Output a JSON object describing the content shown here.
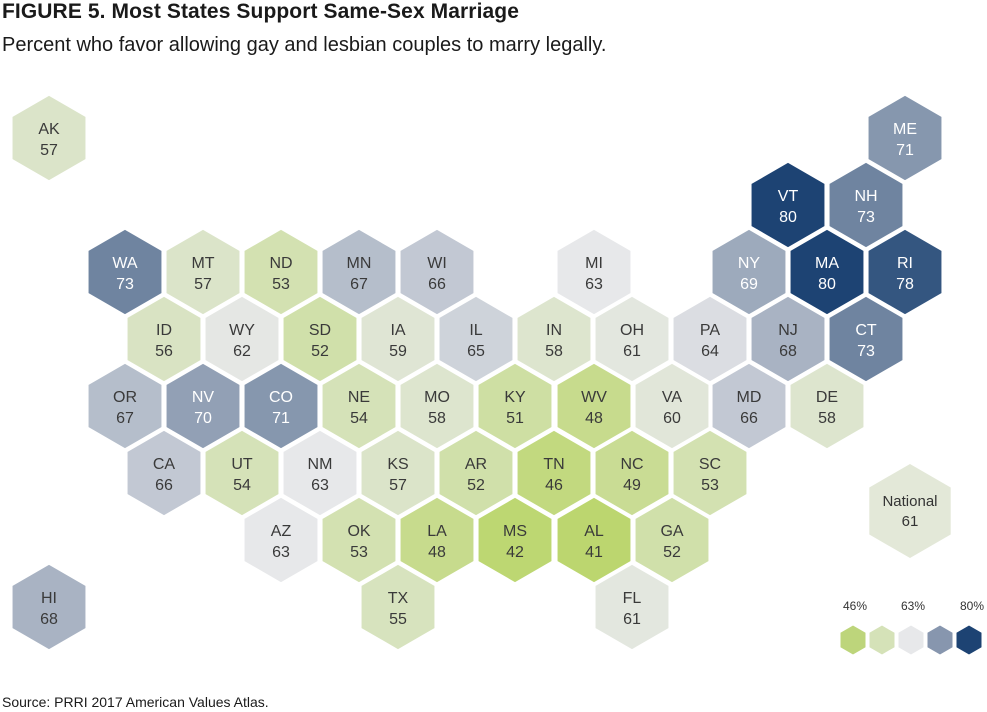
{
  "figure": {
    "title": "FIGURE 5.  Most States Support Same-Sex Marriage",
    "subtitle": "Percent who favor allowing gay and lesbian couples to marry legally.",
    "source": "Source: PRRI 2017 American Values Atlas."
  },
  "chart_data": {
    "type": "hex-tile-map",
    "title": "Most States Support Same-Sex Marriage",
    "unit": "percent",
    "states": [
      {
        "abbr": "AK",
        "value": 57
      },
      {
        "abbr": "ME",
        "value": 71
      },
      {
        "abbr": "VT",
        "value": 80
      },
      {
        "abbr": "NH",
        "value": 73
      },
      {
        "abbr": "WA",
        "value": 73
      },
      {
        "abbr": "MT",
        "value": 57
      },
      {
        "abbr": "ND",
        "value": 53
      },
      {
        "abbr": "MN",
        "value": 67
      },
      {
        "abbr": "WI",
        "value": 66
      },
      {
        "abbr": "MI",
        "value": 63
      },
      {
        "abbr": "NY",
        "value": 69
      },
      {
        "abbr": "MA",
        "value": 80
      },
      {
        "abbr": "RI",
        "value": 78
      },
      {
        "abbr": "ID",
        "value": 56
      },
      {
        "abbr": "WY",
        "value": 62
      },
      {
        "abbr": "SD",
        "value": 52
      },
      {
        "abbr": "IA",
        "value": 59
      },
      {
        "abbr": "IL",
        "value": 65
      },
      {
        "abbr": "IN",
        "value": 58
      },
      {
        "abbr": "OH",
        "value": 61
      },
      {
        "abbr": "PA",
        "value": 64
      },
      {
        "abbr": "NJ",
        "value": 68
      },
      {
        "abbr": "CT",
        "value": 73
      },
      {
        "abbr": "OR",
        "value": 67
      },
      {
        "abbr": "NV",
        "value": 70
      },
      {
        "abbr": "CO",
        "value": 71
      },
      {
        "abbr": "NE",
        "value": 54
      },
      {
        "abbr": "MO",
        "value": 58
      },
      {
        "abbr": "KY",
        "value": 51
      },
      {
        "abbr": "WV",
        "value": 48
      },
      {
        "abbr": "VA",
        "value": 60
      },
      {
        "abbr": "MD",
        "value": 66
      },
      {
        "abbr": "DE",
        "value": 58
      },
      {
        "abbr": "CA",
        "value": 66
      },
      {
        "abbr": "UT",
        "value": 54
      },
      {
        "abbr": "NM",
        "value": 63
      },
      {
        "abbr": "KS",
        "value": 57
      },
      {
        "abbr": "AR",
        "value": 52
      },
      {
        "abbr": "TN",
        "value": 46
      },
      {
        "abbr": "NC",
        "value": 49
      },
      {
        "abbr": "SC",
        "value": 53
      },
      {
        "abbr": "AZ",
        "value": 63
      },
      {
        "abbr": "OK",
        "value": 53
      },
      {
        "abbr": "LA",
        "value": 48
      },
      {
        "abbr": "MS",
        "value": 42
      },
      {
        "abbr": "AL",
        "value": 41
      },
      {
        "abbr": "GA",
        "value": 52
      },
      {
        "abbr": "HI",
        "value": 68
      },
      {
        "abbr": "TX",
        "value": 55
      },
      {
        "abbr": "FL",
        "value": 61
      }
    ],
    "national": {
      "label": "National",
      "value": 61
    },
    "legend": {
      "labels": [
        "46%",
        "63%",
        "80%"
      ],
      "colors": [
        "#bdd57b",
        "#d5e2b8",
        "#e7e8ea",
        "#8796ae",
        "#1d4373"
      ]
    }
  }
}
